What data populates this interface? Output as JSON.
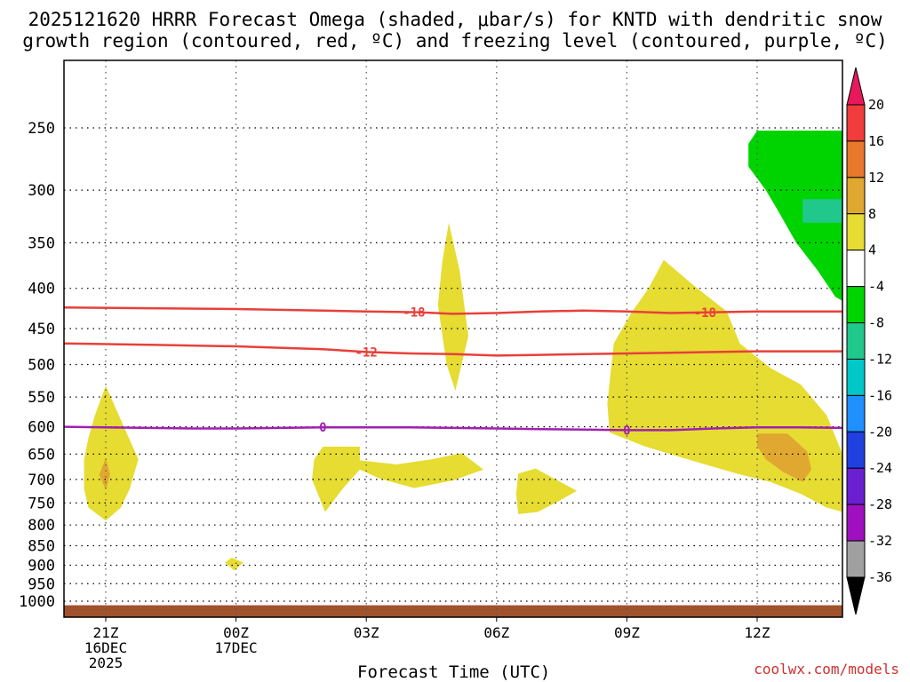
{
  "chart_data": {
    "type": "time-height contour",
    "title_line1": "2025121620 HRRR Forecast Omega (shaded, μbar/s) for KNTD with dendritic snow",
    "title_line2": "growth region (contoured, red, ºC) and freezing level (contoured, purple, ºC)",
    "xlabel": "Forecast Time (UTC)",
    "credit": "coolwx.com/models",
    "x_ticks": [
      {
        "t": 1,
        "lines": [
          "21Z",
          "16DEC",
          "2025"
        ]
      },
      {
        "t": 4,
        "lines": [
          "00Z",
          "17DEC"
        ]
      },
      {
        "t": 7,
        "lines": [
          "03Z"
        ]
      },
      {
        "t": 10,
        "lines": [
          "06Z"
        ]
      },
      {
        "t": 13,
        "lines": [
          "09Z"
        ]
      },
      {
        "t": 16,
        "lines": [
          "12Z"
        ]
      }
    ],
    "x_range_hours": [
      0,
      18
    ],
    "y_ticks": [
      250,
      300,
      350,
      400,
      450,
      500,
      550,
      600,
      650,
      700,
      750,
      800,
      850,
      900,
      950,
      1000
    ],
    "y_range_hpa": [
      200,
      1020
    ],
    "contours": [
      {
        "name": "dendritic-top",
        "label": "-18",
        "color": "#e8403a",
        "points": [
          [
            0,
            423
          ],
          [
            2,
            424
          ],
          [
            4,
            425
          ],
          [
            6,
            427
          ],
          [
            7,
            428
          ],
          [
            8.2,
            429
          ],
          [
            9,
            431
          ],
          [
            10,
            430
          ],
          [
            11,
            428
          ],
          [
            12,
            427
          ],
          [
            13,
            428
          ],
          [
            14,
            430
          ],
          [
            15,
            429
          ],
          [
            16,
            428
          ],
          [
            17,
            428
          ],
          [
            18,
            428
          ]
        ],
        "label_at": [
          8.1,
          14.8
        ]
      },
      {
        "name": "dendritic-bottom",
        "label": "-12",
        "color": "#e8403a",
        "points": [
          [
            0,
            470
          ],
          [
            2,
            472
          ],
          [
            4,
            474
          ],
          [
            6,
            478
          ],
          [
            7,
            482
          ],
          [
            8,
            484
          ],
          [
            9,
            485
          ],
          [
            10,
            487
          ],
          [
            11,
            486
          ],
          [
            12,
            485
          ],
          [
            13,
            484
          ],
          [
            14,
            483
          ],
          [
            15,
            482
          ],
          [
            16,
            481
          ],
          [
            17,
            481
          ],
          [
            18,
            481
          ]
        ],
        "label_at": [
          7.0
        ]
      },
      {
        "name": "freezing-level",
        "label": "0",
        "color": "#a020b0",
        "points": [
          [
            0,
            600
          ],
          [
            1,
            601
          ],
          [
            2,
            602
          ],
          [
            3,
            603
          ],
          [
            4,
            603
          ],
          [
            5,
            602
          ],
          [
            6,
            601
          ],
          [
            7,
            601
          ],
          [
            8,
            601
          ],
          [
            9,
            602
          ],
          [
            10,
            603
          ],
          [
            11,
            604
          ],
          [
            12,
            605
          ],
          [
            13,
            606
          ],
          [
            14,
            606
          ],
          [
            15,
            603
          ],
          [
            16,
            601
          ],
          [
            17,
            601
          ],
          [
            18,
            602
          ]
        ],
        "label_at": [
          6.0,
          13.0
        ]
      }
    ],
    "omega_regions": [
      {
        "level": "4 to 8",
        "color": "#e6dc32",
        "points": [
          [
            1,
            532
          ],
          [
            1.3,
            580
          ],
          [
            1.75,
            660
          ],
          [
            1.55,
            720
          ],
          [
            1.35,
            760
          ],
          [
            1.0,
            790
          ],
          [
            0.6,
            760
          ],
          [
            0.5,
            720
          ],
          [
            0.5,
            660
          ],
          [
            0.6,
            620
          ],
          [
            0.75,
            580
          ]
        ]
      },
      {
        "level": "8 to 12",
        "color": "#e0a830",
        "points": [
          [
            1,
            658
          ],
          [
            1.1,
            690
          ],
          [
            1,
            722
          ],
          [
            0.85,
            690
          ]
        ]
      },
      {
        "level": "4 to 8",
        "color": "#e6dc32",
        "points": [
          [
            3.9,
            880
          ],
          [
            4.17,
            893
          ],
          [
            3.95,
            914
          ],
          [
            3.75,
            893
          ]
        ]
      },
      {
        "level": "4 to 8",
        "color": "#e6dc32",
        "points": [
          [
            8.9,
            330
          ],
          [
            9.15,
            380
          ],
          [
            9.35,
            460
          ],
          [
            9.05,
            540
          ],
          [
            8.85,
            500
          ],
          [
            8.65,
            420
          ],
          [
            8.75,
            370
          ]
        ]
      },
      {
        "level": "4 to 8",
        "color": "#e6dc32",
        "points": [
          [
            6,
            636
          ],
          [
            6.85,
            636
          ],
          [
            6.85,
            662
          ],
          [
            7.7,
            670
          ],
          [
            8.5,
            660
          ],
          [
            9.2,
            648
          ],
          [
            9.7,
            680
          ],
          [
            9.0,
            702
          ],
          [
            8.1,
            718
          ],
          [
            7.3,
            698
          ],
          [
            6.85,
            680
          ],
          [
            6.45,
            720
          ],
          [
            6.05,
            770
          ],
          [
            5.75,
            700
          ],
          [
            5.8,
            660
          ]
        ]
      },
      {
        "level": "4 to 8",
        "color": "#e6dc32",
        "points": [
          [
            10.5,
            688
          ],
          [
            10.9,
            678
          ],
          [
            11.85,
            724
          ],
          [
            11.45,
            745
          ],
          [
            10.95,
            770
          ],
          [
            10.5,
            775
          ],
          [
            10.45,
            730
          ]
        ]
      },
      {
        "level": "4 to 8",
        "color": "#e6dc32",
        "points": [
          [
            13.85,
            368
          ],
          [
            14.5,
            395
          ],
          [
            15.3,
            428
          ],
          [
            15.6,
            470
          ],
          [
            16.3,
            505
          ],
          [
            17,
            530
          ],
          [
            17.6,
            580
          ],
          [
            18,
            650
          ],
          [
            18,
            770
          ],
          [
            17.6,
            760
          ],
          [
            17,
            730
          ],
          [
            16.3,
            705
          ],
          [
            15.6,
            690
          ],
          [
            14.8,
            670
          ],
          [
            14,
            650
          ],
          [
            13.4,
            635
          ],
          [
            12.6,
            610
          ],
          [
            12.55,
            560
          ],
          [
            12.7,
            470
          ],
          [
            13.1,
            430
          ],
          [
            13.5,
            400
          ]
        ]
      },
      {
        "level": "8 to 12",
        "color": "#e0a830",
        "points": [
          [
            16,
            612
          ],
          [
            16.7,
            612
          ],
          [
            17.15,
            645
          ],
          [
            17.25,
            680
          ],
          [
            17.05,
            705
          ],
          [
            16.6,
            685
          ],
          [
            16.2,
            660
          ],
          [
            16,
            635
          ]
        ]
      },
      {
        "level": "-4 to -8",
        "color": "#00d400",
        "points": [
          [
            16,
            252
          ],
          [
            18,
            252
          ],
          [
            18,
            415
          ],
          [
            17.8,
            410
          ],
          [
            17.4,
            380
          ],
          [
            16.9,
            350
          ],
          [
            16.5,
            320
          ],
          [
            16.2,
            300
          ],
          [
            15.8,
            280
          ],
          [
            15.8,
            262
          ]
        ]
      },
      {
        "level": "-8 to -12",
        "color": "#20c88c",
        "points": [
          [
            17.05,
            308
          ],
          [
            18,
            308
          ],
          [
            18,
            330
          ],
          [
            17.05,
            330
          ]
        ]
      }
    ],
    "terrain": {
      "color": "#a0522d",
      "surface_hpa": 1012
    },
    "colorbar": {
      "labels": [
        "20",
        "16",
        "12",
        "8",
        "4",
        "-4",
        "-8",
        "-12",
        "-16",
        "-20",
        "-24",
        "-28",
        "-32",
        "-36"
      ],
      "colors": [
        "#e8185c",
        "#f03c3c",
        "#e8782c",
        "#e0a830",
        "#e6dc32",
        "#ffffff",
        "#00d400",
        "#20c88c",
        "#00c8c8",
        "#1e90ff",
        "#2040e0",
        "#6a1fd0",
        "#a010c0",
        "#a0a0a0",
        "#000000"
      ]
    }
  }
}
